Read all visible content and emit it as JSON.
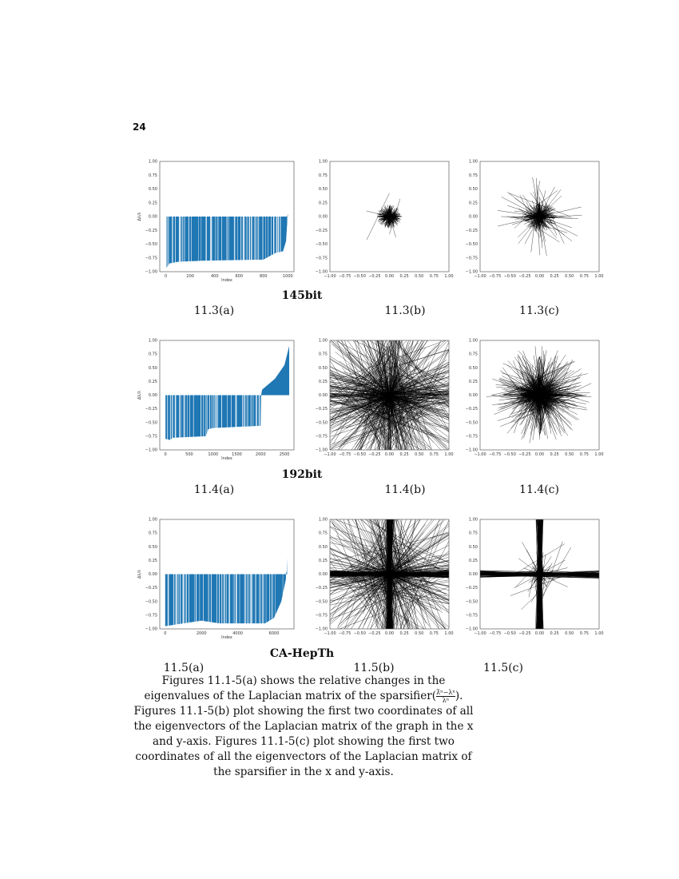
{
  "page_number": "24",
  "rows": [
    {
      "title": "145bit",
      "labels": [
        "11.3(a)",
        "11.3(b)",
        "11.3(c)"
      ]
    },
    {
      "title": "192bit",
      "labels": [
        "11.4(a)",
        "11.4(b)",
        "11.4(c)"
      ]
    },
    {
      "title": "CA-HepTh",
      "labels": [
        "11.5(a)",
        "11.5(b)",
        "11.5(c)"
      ]
    }
  ],
  "caption_parts": [
    "Figures 11.1-5(a) shows the relative changes in the eigenvalues of the Laplacian matrix of the sparsifier(",
    "λ̃ⁿ−λⁿ",
    "λⁿ",
    "). Figures 11.1-5(b) plot showing the first two coordinates of all the eigenvectors of the Laplacian matrix of the graph in the x and y-axis. Figures 11.1-5(c) plot showing the first two coordinates of all the eigenvectors of the Laplacian matrix of the sparsifier in the x and y-axis."
  ],
  "chart_data": [
    {
      "type": "bar",
      "panel": "11.3(a)",
      "xlabel": "Index",
      "ylabel": "Δλ/λ",
      "xlim": [
        -50,
        1050
      ],
      "ylim": [
        -1,
        1
      ],
      "xticks": [
        0,
        200,
        400,
        600,
        800,
        1000
      ],
      "yticks": [
        "-1.00",
        "-0.75",
        "-0.50",
        "-0.25",
        "0.00",
        "0.25",
        "0.50",
        "0.75",
        "1.00"
      ],
      "color": "#1f77b4",
      "curve": [
        [
          0,
          -0.95
        ],
        [
          30,
          -0.85
        ],
        [
          100,
          -0.82
        ],
        [
          300,
          -0.8
        ],
        [
          800,
          -0.78
        ],
        [
          850,
          -0.72
        ],
        [
          900,
          -0.66
        ],
        [
          960,
          -0.63
        ],
        [
          985,
          -0.45
        ],
        [
          995,
          -0.1
        ],
        [
          1000,
          0.05
        ]
      ]
    },
    {
      "type": "line",
      "panel": "11.3(b)",
      "xlim": [
        -1,
        1
      ],
      "ylim": [
        -1,
        1
      ],
      "xticks": [
        "-1.00",
        "-0.75",
        "-0.50",
        "-0.25",
        "0.00",
        "0.25",
        "0.50",
        "0.75",
        "1.00"
      ],
      "yticks": [
        "-1.00",
        "-0.75",
        "-0.50",
        "-0.25",
        "0.00",
        "0.25",
        "0.50",
        "0.75",
        "1.00"
      ],
      "spread": 0.22,
      "dense": 300,
      "long": 4
    },
    {
      "type": "line",
      "panel": "11.3(c)",
      "xlim": [
        -1,
        1
      ],
      "ylim": [
        -1,
        1
      ],
      "xticks": [
        "-1.00",
        "-0.75",
        "-0.50",
        "-0.25",
        "0.00",
        "0.25",
        "0.50",
        "0.75",
        "1.00"
      ],
      "yticks": [
        "-1.00",
        "-0.75",
        "-0.50",
        "-0.25",
        "0.00",
        "0.25",
        "0.50",
        "0.75",
        "1.00"
      ],
      "spread": 0.3,
      "dense": 250,
      "long": 40
    },
    {
      "type": "bar",
      "panel": "11.4(a)",
      "xlabel": "Index",
      "ylabel": "Δλ/λ",
      "xlim": [
        -120,
        2700
      ],
      "ylim": [
        -1,
        1
      ],
      "xticks": [
        0,
        500,
        1000,
        1500,
        2000,
        2500
      ],
      "yticks": [
        "-1.00",
        "-0.75",
        "-0.50",
        "-0.25",
        "0.00",
        "0.25",
        "0.50",
        "0.75",
        "1.00"
      ],
      "color": "#1f77b4",
      "curve": [
        [
          0,
          -0.8
        ],
        [
          100,
          -0.82
        ],
        [
          150,
          -0.78
        ],
        [
          850,
          -0.75
        ],
        [
          900,
          -0.62
        ],
        [
          1000,
          -0.6
        ],
        [
          2000,
          -0.56
        ],
        [
          2010,
          0.0
        ],
        [
          2030,
          0.1
        ],
        [
          2300,
          0.3
        ],
        [
          2500,
          0.55
        ],
        [
          2600,
          0.9
        ]
      ]
    },
    {
      "type": "line",
      "panel": "11.4(b)",
      "xlim": [
        -1,
        1
      ],
      "ylim": [
        -1,
        1
      ],
      "xticks": [
        "-1.00",
        "-0.75",
        "-0.50",
        "-0.25",
        "0.00",
        "0.25",
        "0.50",
        "0.75",
        "1.00"
      ],
      "yticks": [
        "-1.00",
        "-0.75",
        "-0.50",
        "-0.25",
        "0.00",
        "0.25",
        "0.50",
        "0.75",
        "1.00"
      ],
      "spread": 1.2,
      "dense": 0,
      "long": 500
    },
    {
      "type": "line",
      "panel": "11.4(c)",
      "xlim": [
        -1,
        1
      ],
      "ylim": [
        -1,
        1
      ],
      "xticks": [
        "-1.00",
        "-0.75",
        "-0.50",
        "-0.25",
        "0.00",
        "0.25",
        "0.50",
        "0.75",
        "1.00"
      ],
      "yticks": [
        "-1.00",
        "-0.75",
        "-0.50",
        "-0.25",
        "0.00",
        "0.25",
        "0.50",
        "0.75",
        "1.00"
      ],
      "spread": 0.4,
      "dense": 400,
      "long": 250
    },
    {
      "type": "bar",
      "panel": "11.5(a)",
      "xlabel": "Index",
      "ylabel": "Δλ/λ",
      "xlim": [
        -300,
        7100
      ],
      "ylim": [
        -1,
        1
      ],
      "xticks": [
        0,
        2000,
        4000,
        6000
      ],
      "yticks": [
        "-1.00",
        "-0.75",
        "-0.50",
        "-0.25",
        "0.00",
        "0.25",
        "0.50",
        "0.75",
        "1.00"
      ],
      "color": "#1f77b4",
      "curve": [
        [
          0,
          -0.95
        ],
        [
          1000,
          -0.9
        ],
        [
          2000,
          -0.85
        ],
        [
          3000,
          -0.9
        ],
        [
          5500,
          -0.9
        ],
        [
          6000,
          -0.8
        ],
        [
          6400,
          -0.5
        ],
        [
          6650,
          -0.1
        ],
        [
          6700,
          0.05
        ],
        [
          6720,
          0.3
        ]
      ]
    },
    {
      "type": "line",
      "panel": "11.5(b)",
      "xlim": [
        -1,
        1
      ],
      "ylim": [
        -1,
        1
      ],
      "xticks": [
        "-1.00",
        "-0.75",
        "-0.50",
        "-0.25",
        "0.00",
        "0.25",
        "0.50",
        "0.75",
        "1.00"
      ],
      "yticks": [
        "-1.00",
        "-0.75",
        "-0.50",
        "-0.25",
        "0.00",
        "0.25",
        "0.50",
        "0.75",
        "1.00"
      ],
      "spread": 1.2,
      "dense": 0,
      "long": 350,
      "cross": 300
    },
    {
      "type": "line",
      "panel": "11.5(c)",
      "xlim": [
        -1,
        1
      ],
      "ylim": [
        -1,
        1
      ],
      "xticks": [
        "-1.00",
        "-0.75",
        "-0.50",
        "-0.25",
        "0.00",
        "0.25",
        "0.50",
        "0.75",
        "1.00"
      ],
      "yticks": [
        "-1.00",
        "-0.75",
        "-0.50",
        "-0.25",
        "0.00",
        "0.25",
        "0.50",
        "0.75",
        "1.00"
      ],
      "spread": 0.3,
      "dense": 50,
      "long": 20,
      "cross": 300
    }
  ]
}
